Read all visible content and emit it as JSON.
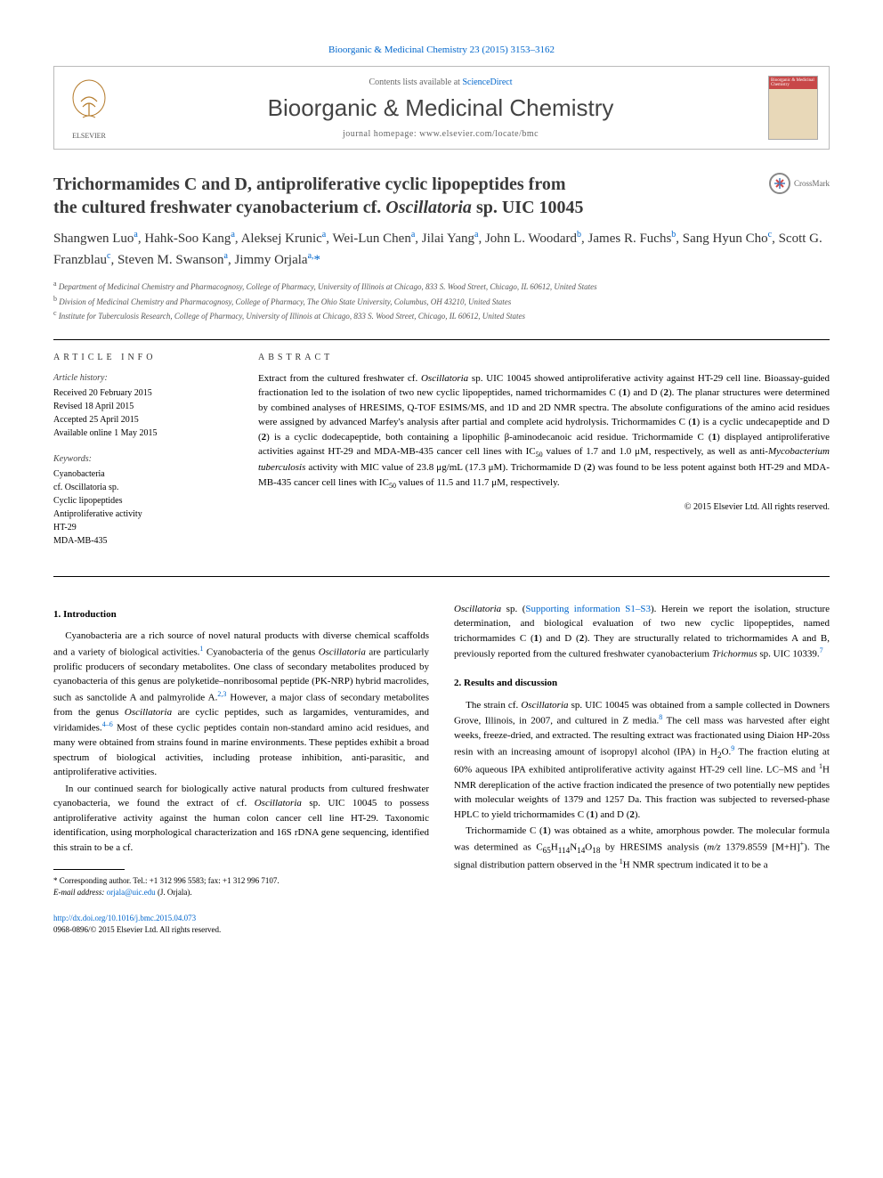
{
  "header": {
    "citation": "Bioorganic & Medicinal Chemistry 23 (2015) 3153–3162",
    "contents_prefix": "Contents lists available at ",
    "contents_link": "ScienceDirect",
    "journal_name": "Bioorganic & Medicinal Chemistry",
    "homepage_prefix": "journal homepage: ",
    "homepage_url": "www.elsevier.com/locate/bmc",
    "elsevier_label": "ELSEVIER",
    "cover_label": "Bioorganic & Medicinal Chemistry"
  },
  "title": {
    "line1": "Trichormamides C and D, antiproliferative cyclic lipopeptides from",
    "line2_pre": "the cultured freshwater cyanobacterium cf. ",
    "line2_ital": "Oscillatoria",
    "line2_post": " sp. UIC 10045"
  },
  "crossmark": "CrossMark",
  "authors_html": "Shangwen Luo<sup>a</sup>, Hahk-Soo Kang<sup>a</sup>, Aleksej Krunic<sup>a</sup>, Wei-Lun Chen<sup>a</sup>, Jilai Yang<sup>a</sup>, John L. Woodard<sup>b</sup>, James R. Fuchs<sup>b</sup>, Sang Hyun Cho<sup>c</sup>, Scott G. Franzblau<sup>c</sup>, Steven M. Swanson<sup>a</sup>, Jimmy Orjala<sup>a,</sup><span class='star'>*</span>",
  "affiliations": {
    "a": "Department of Medicinal Chemistry and Pharmacognosy, College of Pharmacy, University of Illinois at Chicago, 833 S. Wood Street, Chicago, IL 60612, United States",
    "b": "Division of Medicinal Chemistry and Pharmacognosy, College of Pharmacy, The Ohio State University, Columbus, OH 43210, United States",
    "c": "Institute for Tuberculosis Research, College of Pharmacy, University of Illinois at Chicago, 833 S. Wood Street, Chicago, IL 60612, United States"
  },
  "info": {
    "heading": "ARTICLE INFO",
    "history_head": "Article history:",
    "history": [
      "Received 20 February 2015",
      "Revised 18 April 2015",
      "Accepted 25 April 2015",
      "Available online 1 May 2015"
    ],
    "keywords_head": "Keywords:",
    "keywords": [
      "Cyanobacteria",
      "cf. <span class='italic'>Oscillatoria</span> sp.",
      "Cyclic lipopeptides",
      "Antiproliferative activity",
      "HT-29",
      "MDA-MB-435"
    ]
  },
  "abstract": {
    "heading": "ABSTRACT",
    "text": "Extract from the cultured freshwater cf. <span class='italic'>Oscillatoria</span> sp. UIC 10045 showed antiproliferative activity against HT-29 cell line. Bioassay-guided fractionation led to the isolation of two new cyclic lipopeptides, named trichormamides C (<b>1</b>) and D (<b>2</b>). The planar structures were determined by combined analyses of HRESIMS, Q-TOF ESIMS/MS, and 1D and 2D NMR spectra. The absolute configurations of the amino acid residues were assigned by advanced Marfey's analysis after partial and complete acid hydrolysis. Trichormamides C (<b>1</b>) is a cyclic undecapeptide and D (<b>2</b>) is a cyclic dodecapeptide, both containing a lipophilic β-aminodecanoic acid residue. Trichormamide C (<b>1</b>) displayed antiproliferative activities against HT-29 and MDA-MB-435 cancer cell lines with IC<sub>50</sub> values of 1.7 and 1.0 μM, respectively, as well as anti-<span class='italic'>Mycobacterium tuberculosis</span> activity with MIC value of 23.8 μg/mL (17.3 μM). Trichormamide D (<b>2</b>) was found to be less potent against both HT-29 and MDA-MB-435 cancer cell lines with IC<sub>50</sub> values of 11.5 and 11.7 μM, respectively.",
    "copyright": "© 2015 Elsevier Ltd. All rights reserved."
  },
  "sections": {
    "s1_head": "1. Introduction",
    "s1_p1": "Cyanobacteria are a rich source of novel natural products with diverse chemical scaffolds and a variety of biological activities.<sup>1</sup> Cyanobacteria of the genus <span class='italic'>Oscillatoria</span> are particularly prolific producers of secondary metabolites. One class of secondary metabolites produced by cyanobacteria of this genus are polyketide–nonribosomal peptide (PK-NRP) hybrid macrolides, such as sanctolide A and palmyrolide A.<sup>2,3</sup> However, a major class of secondary metabolites from the genus <span class='italic'>Oscillatoria</span> are cyclic peptides, such as largamides, venturamides, and viridamides.<sup>4–6</sup> Most of these cyclic peptides contain non-standard amino acid residues, and many were obtained from strains found in marine environments. These peptides exhibit a broad spectrum of biological activities, including protease inhibition, anti-parasitic, and antiproliferative activities.",
    "s1_p2": "In our continued search for biologically active natural products from cultured freshwater cyanobacteria, we found the extract of cf. <span class='italic'>Oscillatoria</span> sp. UIC 10045 to possess antiproliferative activity against the human colon cancer cell line HT-29. Taxonomic identification, using morphological characterization and 16S rDNA gene sequencing, identified this strain to be a cf.",
    "s1_p3": "<span class='italic'>Oscillatoria</span> sp. (<a href='#'>Supporting information S1–S3</a>). Herein we report the isolation, structure determination, and biological evaluation of two new cyclic lipopeptides, named trichormamides C (<b>1</b>) and D (<b>2</b>). They are structurally related to trichormamides A and B, previously reported from the cultured freshwater cyanobacterium <span class='italic'>Trichormus</span> sp. UIC 10339.<sup>7</sup>",
    "s2_head": "2. Results and discussion",
    "s2_p1": "The strain cf. <span class='italic'>Oscillatoria</span> sp. UIC 10045 was obtained from a sample collected in Downers Grove, Illinois, in 2007, and cultured in Z media.<sup>8</sup> The cell mass was harvested after eight weeks, freeze-dried, and extracted. The resulting extract was fractionated using Diaion HP-20ss resin with an increasing amount of isopropyl alcohol (IPA) in H<sub>2</sub>O.<sup>9</sup> The fraction eluting at 60% aqueous IPA exhibited antiproliferative activity against HT-29 cell line. LC–MS and <sup class='black'>1</sup>H NMR dereplication of the active fraction indicated the presence of two potentially new peptides with molecular weights of 1379 and 1257 Da. This fraction was subjected to reversed-phase HPLC to yield trichormamides C (<b>1</b>) and D (<b>2</b>).",
    "s2_p2": "Trichormamide C (<b>1</b>) was obtained as a white, amorphous powder. The molecular formula was determined as C<sub>65</sub>H<sub>114</sub>N<sub>14</sub>O<sub>18</sub> by HRESIMS analysis (<span class='italic'>m/z</span> 1379.8559 [M+H]<sup class='black'>+</sup>). The signal distribution pattern observed in the <sup class='black'>1</sup>H NMR spectrum indicated it to be a"
  },
  "footnote": {
    "corr": "* Corresponding author. Tel.: +1 312 996 5583; fax: +1 312 996 7107.",
    "email_label": "E-mail address:",
    "email": "orjala@uic.edu",
    "email_suffix": "(J. Orjala)."
  },
  "footer": {
    "doi": "http://dx.doi.org/10.1016/j.bmc.2015.04.073",
    "issn": "0968-0896/© 2015 Elsevier Ltd. All rights reserved."
  },
  "colors": {
    "link": "#0066cc",
    "text": "#000000",
    "muted": "#666666",
    "rule": "#000000"
  }
}
